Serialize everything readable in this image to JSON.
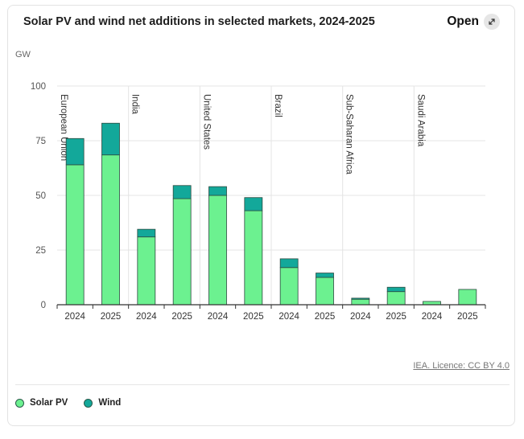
{
  "header": {
    "title": "Solar PV and wind net additions in selected markets, 2024-2025",
    "open_label": "Open"
  },
  "colors": {
    "solar": "#6cf190",
    "wind": "#13a89a",
    "bar_stroke": "#2c4a40",
    "grid": "#e4e4e4",
    "axis": "#333333"
  },
  "footer": {
    "source": "IEA. Licence: CC BY 4.0"
  },
  "chart_data": {
    "type": "bar",
    "stacked": true,
    "title": "Solar PV and wind net additions in selected markets, 2024-2025",
    "ylabel": "GW",
    "ylim": [
      0,
      100
    ],
    "yticks": [
      0,
      25,
      50,
      75,
      100
    ],
    "grid": true,
    "legend_position": "bottom-left",
    "groups": [
      "European Union",
      "India",
      "United States",
      "Brazil",
      "Sub-Saharan Africa",
      "Saudi Arabia"
    ],
    "categories": [
      "2024",
      "2025",
      "2024",
      "2025",
      "2024",
      "2025",
      "2024",
      "2025",
      "2024",
      "2025",
      "2024",
      "2025"
    ],
    "series": [
      {
        "name": "Solar PV",
        "values": [
          64,
          68.5,
          31,
          48.5,
          50,
          43,
          17,
          12.5,
          2.5,
          6,
          1.5,
          7
        ]
      },
      {
        "name": "Wind",
        "values": [
          12,
          14.5,
          3.5,
          6,
          4,
          6,
          4,
          2,
          0.5,
          2,
          0,
          0
        ]
      }
    ]
  }
}
